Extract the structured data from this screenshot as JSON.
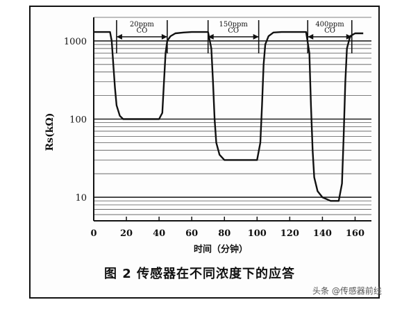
{
  "chart_data": {
    "type": "line",
    "xlabel": "时间（分钟）",
    "ylabel": "Rs(kΩ)",
    "xlim": [
      0,
      170
    ],
    "ylim": [
      5,
      2000
    ],
    "y_scale": "log",
    "x_ticks": [
      0,
      20,
      40,
      60,
      80,
      100,
      120,
      140,
      160
    ],
    "y_ticks": [
      {
        "value": 10,
        "label": "10"
      },
      {
        "value": 100,
        "label": "100"
      },
      {
        "value": 1000,
        "label": "1000"
      }
    ],
    "grid": "horizontal",
    "annotations": [
      {
        "label": "20ppm CO",
        "x_start": 14,
        "x_end": 45
      },
      {
        "label": "150ppm CO",
        "x_start": 70,
        "x_end": 101
      },
      {
        "label": "400ppm CO",
        "x_start": 131,
        "x_end": 158
      }
    ],
    "series": [
      {
        "x": [
          0,
          10,
          11,
          12,
          13,
          14,
          16,
          18,
          20,
          25,
          30,
          35,
          40,
          42,
          43,
          44,
          45,
          47,
          50,
          55,
          60,
          65,
          70,
          72,
          73,
          74,
          75,
          77,
          80,
          85,
          90,
          95,
          100,
          102,
          103,
          104,
          105,
          107,
          110,
          115,
          120,
          125,
          130,
          132,
          133,
          134,
          135,
          137,
          140,
          145,
          150,
          152,
          153,
          154,
          155,
          157,
          160,
          165
        ],
        "y": [
          1300,
          1300,
          1000,
          500,
          250,
          150,
          110,
          100,
          100,
          100,
          100,
          100,
          100,
          120,
          300,
          700,
          1000,
          1150,
          1250,
          1280,
          1300,
          1300,
          1300,
          800,
          300,
          100,
          50,
          35,
          30,
          30,
          30,
          30,
          30,
          50,
          150,
          500,
          900,
          1150,
          1280,
          1300,
          1300,
          1300,
          1300,
          700,
          150,
          40,
          18,
          12,
          10,
          9,
          9,
          15,
          60,
          300,
          800,
          1150,
          1250,
          1250
        ]
      }
    ]
  },
  "figure": {
    "caption": "图 2  传感器在不同浓度下的应答",
    "watermark": "头条 @传感器前线"
  }
}
